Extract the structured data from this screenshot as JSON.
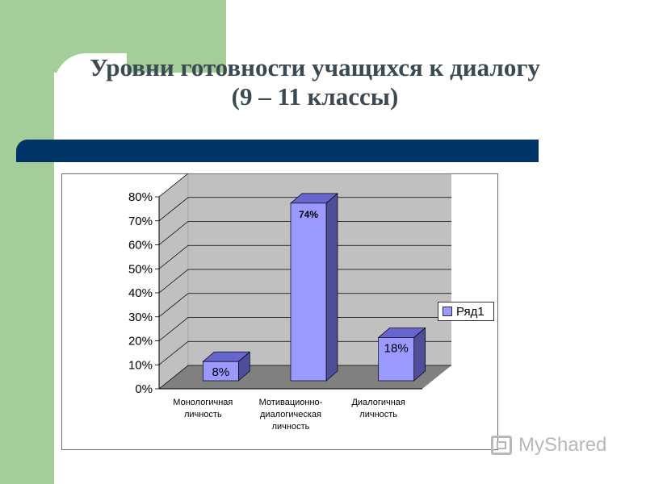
{
  "title_line1": "Уровни готовности учащихся к диалогу",
  "title_line2": "(9 – 11 классы)",
  "watermark": "MyShared",
  "colors": {
    "bar_front": "#9999ff",
    "bar_top": "#6666cc",
    "bar_side": "#4d4d99",
    "wall": "#c0c0c0",
    "floor": "#808080",
    "navy": "#003366",
    "green": "#a3cd99"
  },
  "chart_data": {
    "type": "bar",
    "categories": [
      [
        "Монологичная",
        "личность"
      ],
      [
        "Мотивационно-",
        "диалогическая",
        "личность"
      ],
      [
        "Диалогичная",
        "личность"
      ]
    ],
    "series": [
      {
        "name": "Ряд1",
        "values": [
          8,
          74,
          18
        ]
      }
    ],
    "data_labels": [
      "8%",
      "74%",
      "18%"
    ],
    "yticks": [
      "0%",
      "10%",
      "20%",
      "30%",
      "40%",
      "50%",
      "60%",
      "70%",
      "80%"
    ],
    "ylim": [
      0,
      80
    ],
    "grid": true,
    "legend_position": "right",
    "style": "3d"
  }
}
